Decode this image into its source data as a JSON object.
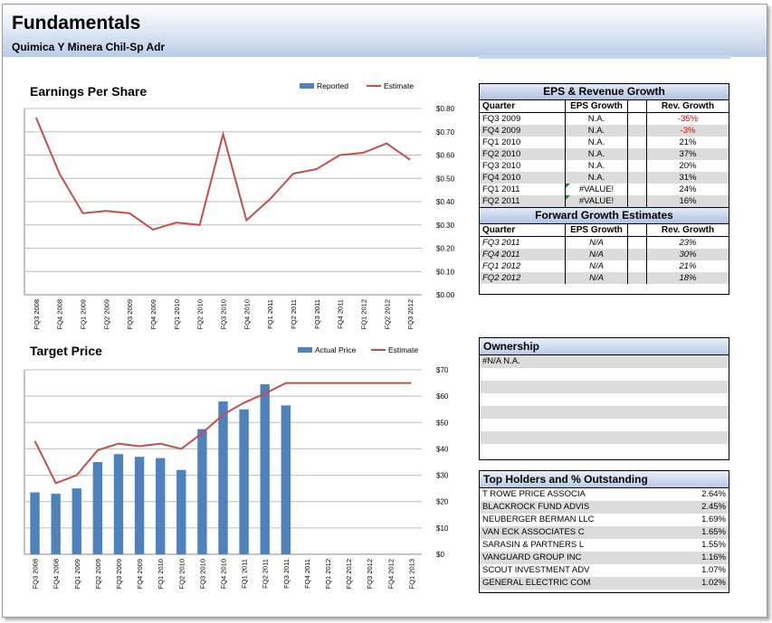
{
  "header": {
    "title": "Fundamentals",
    "subtitle": "Quimica Y Minera Chil-Sp Adr"
  },
  "eps_chart": {
    "title": "Earnings Per Share",
    "legend_reported": "Reported",
    "legend_estimate": "Estimate"
  },
  "target_chart": {
    "title": "Target Price",
    "legend_actual": "Actual Price",
    "legend_estimate": "Estimate"
  },
  "chart_data": [
    {
      "type": "line",
      "title": "Earnings Per Share",
      "categories": [
        "FQ3 2008",
        "FQ4 2008",
        "FQ1 2009",
        "FQ2 2009",
        "FQ3 2009",
        "FQ4 2009",
        "FQ1 2010",
        "FQ2 2010",
        "FQ3 2010",
        "FQ4 2010",
        "FQ1 2011",
        "FQ2 2011",
        "FQ3 2011",
        "FQ4 2011",
        "FQ1 2012",
        "FQ2 2012",
        "FQ3 2012"
      ],
      "series": [
        {
          "name": "Estimate",
          "values": [
            0.76,
            0.52,
            0.35,
            0.36,
            0.35,
            0.28,
            0.31,
            0.3,
            0.69,
            0.32,
            0.41,
            0.52,
            0.54,
            0.6,
            0.61,
            0.65,
            0.58
          ]
        }
      ],
      "yticks": [
        "$0.00",
        "$0.10",
        "$0.20",
        "$0.30",
        "$0.40",
        "$0.50",
        "$0.60",
        "$0.70",
        "$0.80"
      ],
      "ylim": [
        0,
        0.8
      ],
      "legend": "top-right",
      "grid": true,
      "colors": {
        "Reported": "#4f81bd",
        "Estimate": "#c0504d"
      }
    },
    {
      "type": "bar",
      "title": "Target Price",
      "categories": [
        "FQ3 2008",
        "FQ4 2008",
        "FQ1 2009",
        "FQ2 2009",
        "FQ3 2009",
        "FQ4 2009",
        "FQ1 2010",
        "FQ2 2010",
        "FQ3 2010",
        "FQ4 2010",
        "FQ1 2011",
        "FQ2 2011",
        "FQ3 2011",
        "FQ4 2011",
        "FQ1 2012",
        "FQ2 2012",
        "FQ3 2012",
        "FQ4 2012",
        "FQ1 2013"
      ],
      "series": [
        {
          "name": "Actual Price",
          "values": [
            23.5,
            23,
            25,
            35,
            38,
            37,
            36.5,
            32,
            47.5,
            58,
            55,
            64.5,
            56.5,
            null,
            null,
            null,
            null,
            null,
            null
          ]
        },
        {
          "name": "Estimate",
          "values": [
            43,
            27,
            30,
            39.5,
            42,
            41,
            42,
            40,
            46,
            53,
            57.5,
            61,
            65,
            65,
            65,
            65,
            65,
            65,
            65
          ]
        }
      ],
      "yticks": [
        "$0",
        "$10",
        "$20",
        "$30",
        "$40",
        "$50",
        "$60",
        "$70"
      ],
      "ylim": [
        0,
        70
      ],
      "legend": "top-right",
      "grid": true,
      "colors": {
        "Actual Price": "#4f81bd",
        "Estimate": "#c0504d"
      }
    }
  ],
  "growth": {
    "title": "EPS & Revenue Growth",
    "headers": {
      "quarter": "Quarter",
      "eps": "EPS Growth",
      "rev": "Rev. Growth"
    },
    "rows": [
      {
        "quarter": "FQ3 2009",
        "eps": "N.A.",
        "rev": "-35%"
      },
      {
        "quarter": "FQ4 2009",
        "eps": "N.A.",
        "rev": "-3%"
      },
      {
        "quarter": "FQ1 2010",
        "eps": "N.A.",
        "rev": "21%"
      },
      {
        "quarter": "FQ2 2010",
        "eps": "N.A.",
        "rev": "37%"
      },
      {
        "quarter": "FQ3 2010",
        "eps": "N.A.",
        "rev": "20%"
      },
      {
        "quarter": "FQ4 2010",
        "eps": "N.A.",
        "rev": "31%"
      },
      {
        "quarter": "FQ1 2011",
        "eps": "#VALUE!",
        "rev": "24%"
      },
      {
        "quarter": "FQ2 2011",
        "eps": "#VALUE!",
        "rev": "16%"
      }
    ],
    "forward_title": "Forward Growth Estimates",
    "forward_rows": [
      {
        "quarter": "FQ3 2011",
        "eps": "N/A",
        "rev": "23%"
      },
      {
        "quarter": "FQ4 2011",
        "eps": "N/A",
        "rev": "30%"
      },
      {
        "quarter": "FQ1 2012",
        "eps": "N/A",
        "rev": "21%"
      },
      {
        "quarter": "FQ2 2012",
        "eps": "N/A",
        "rev": "18%"
      }
    ]
  },
  "ownership": {
    "title": "Ownership",
    "first_row": "#N/A N.A."
  },
  "holders": {
    "title": "Top Holders and % Outstanding",
    "rows": [
      {
        "name": "T ROWE PRICE ASSOCIA",
        "pct": "2.64%"
      },
      {
        "name": "BLACKROCK FUND ADVIS",
        "pct": "2.45%"
      },
      {
        "name": "NEUBERGER BERMAN LLC",
        "pct": "1.69%"
      },
      {
        "name": "VAN ECK ASSOCIATES C",
        "pct": "1.65%"
      },
      {
        "name": "SARASIN & PARTNERS L",
        "pct": "1.55%"
      },
      {
        "name": "VANGUARD GROUP INC",
        "pct": "1.16%"
      },
      {
        "name": "SCOUT INVESTMENT ADV",
        "pct": "1.07%"
      },
      {
        "name": "GENERAL ELECTRIC COM",
        "pct": "1.02%"
      }
    ]
  }
}
